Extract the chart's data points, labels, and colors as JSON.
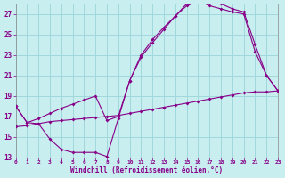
{
  "bg_color": "#c8eef0",
  "grid_color": "#a0d8dc",
  "line_color": "#880088",
  "xlabel": "Windchill (Refroidissement éolien,°C)",
  "xlim": [
    0,
    23
  ],
  "ylim": [
    13,
    28
  ],
  "xticks": [
    0,
    1,
    2,
    3,
    4,
    5,
    6,
    7,
    8,
    9,
    10,
    11,
    12,
    13,
    14,
    15,
    16,
    17,
    18,
    19,
    20,
    21,
    22,
    23
  ],
  "yticks": [
    13,
    15,
    17,
    19,
    21,
    23,
    25,
    27
  ],
  "line1_x": [
    0,
    1,
    2,
    3,
    4,
    5,
    6,
    7,
    8,
    9,
    10,
    11,
    12,
    13,
    14,
    15,
    16,
    17,
    18,
    19,
    20,
    21,
    22,
    23
  ],
  "line1_y": [
    18.0,
    16.4,
    16.3,
    14.8,
    13.8,
    13.5,
    13.5,
    13.5,
    13.1,
    16.8,
    20.5,
    23.0,
    24.5,
    25.7,
    26.8,
    28.0,
    28.3,
    27.8,
    27.5,
    27.2,
    27.0,
    23.3,
    21.0,
    19.5
  ],
  "line2_x": [
    0,
    1,
    2,
    3,
    4,
    5,
    6,
    7,
    8,
    9,
    10,
    11,
    12,
    13,
    14,
    15,
    16,
    17,
    18,
    19,
    20,
    21,
    22,
    23
  ],
  "line2_y": [
    18.0,
    16.4,
    16.8,
    17.3,
    17.8,
    18.2,
    18.6,
    19.0,
    16.6,
    17.0,
    20.5,
    22.8,
    24.2,
    25.5,
    26.8,
    27.8,
    28.2,
    28.5,
    28.0,
    27.5,
    27.2,
    24.0,
    21.0,
    19.5
  ],
  "line3_x": [
    0,
    1,
    2,
    3,
    4,
    5,
    6,
    7,
    8,
    9,
    10,
    11,
    12,
    13,
    14,
    15,
    16,
    17,
    18,
    19,
    20,
    21,
    22,
    23
  ],
  "line3_y": [
    16.0,
    16.1,
    16.3,
    16.5,
    16.6,
    16.7,
    16.8,
    16.9,
    17.0,
    17.1,
    17.3,
    17.5,
    17.7,
    17.9,
    18.1,
    18.3,
    18.5,
    18.7,
    18.9,
    19.1,
    19.3,
    19.4,
    19.4,
    19.5
  ]
}
